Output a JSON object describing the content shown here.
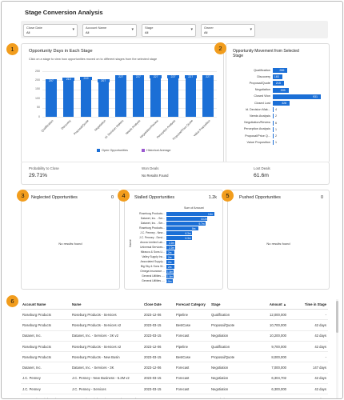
{
  "page": {
    "title": "Stage Conversion Analysis"
  },
  "filters": [
    {
      "label": "Close Date",
      "value": "All"
    },
    {
      "label": "Account Name",
      "value": "All"
    },
    {
      "label": "Stage",
      "value": "All"
    },
    {
      "label": "Owner",
      "value": "All"
    }
  ],
  "badges": [
    "1",
    "2",
    "3",
    "4",
    "5",
    "6"
  ],
  "opportunity_days": {
    "title": "Opportunity Days in Each Stage",
    "subtitle": "Click on a stage to view how opportunities moved on to different stages from the selected stage",
    "legend": [
      {
        "name": "Open Opportunities",
        "color": "#1b6fd6"
      },
      {
        "name": "Historical Average",
        "color": "#9b59d0"
      }
    ]
  },
  "movement": {
    "title": "Opportunity Movement from Selected Stage"
  },
  "stats": {
    "probability": {
      "label": "Probability to Close",
      "value": "29.71%"
    },
    "won": {
      "label": "Won Deals",
      "value": "No Results Found"
    },
    "lost": {
      "label": "Lost Deals",
      "value": "61.6m"
    }
  },
  "neglected": {
    "title": "Neglected Opportunities",
    "count": "0",
    "empty": "No results found"
  },
  "stalled": {
    "title": "Stalled Opportunities",
    "count": "1.2k",
    "axis_title": "Sum of Amount",
    "y_title": "Name"
  },
  "pushed": {
    "title": "Pushed Opportunities",
    "count": "0",
    "empty": "No results found"
  },
  "table": {
    "columns": [
      "Account Name",
      "Name",
      "Close Date",
      "Forecast Category",
      "Stage",
      "Amount ▲",
      "Time in Stage"
    ],
    "rows": [
      [
        "Roseburg Products",
        "Roseburg Products - Services",
        "2023-12-06",
        "Pipeline",
        "Qualification",
        "12,000,000",
        "-"
      ],
      [
        "Roseburg Products",
        "Roseburg Products - Services v2",
        "2023-03-15",
        "BestCase",
        "Proposal/Quote",
        "10,700,000",
        "42 days"
      ],
      [
        "Datanet, Inc.",
        "Datanet, Inc. - Services - 3K v2",
        "2023-03-15",
        "Forecast",
        "Negotiation",
        "10,200,000",
        "42 days"
      ],
      [
        "Roseburg Products",
        "Roseburg Products - Services v2",
        "2023-12-06",
        "Pipeline",
        "Qualification",
        "9,700,000",
        "42 days"
      ],
      [
        "Roseburg Products",
        "Roseburg Products - New Busin",
        "2023-03-15",
        "BestCase",
        "Proposal/Quote",
        "8,000,000",
        "-"
      ],
      [
        "Datanet, Inc.",
        "Datanet, Inc. - Services - 3K",
        "2023-12-06",
        "Forecast",
        "Negotiation",
        "7,000,000",
        "147 days"
      ],
      [
        "J.C. Penney",
        "J.C. Penney - New Business - 5.2M v2",
        "2023-03-15",
        "Forecast",
        "Negotiation",
        "6,304,702",
        "42 days"
      ],
      [
        "J.C. Penney",
        "J.C. Penney - Services",
        "2023-03-15",
        "Forecast",
        "Negotiation",
        "6,300,000",
        "42 days"
      ],
      [
        "Omega Financial Services",
        "Omega Financial Services - Services - 831k v2",
        "2023-03-15",
        "Forecast",
        "Negotiation",
        "569,004.48",
        "42 days"
      ]
    ]
  },
  "chart_data": [
    {
      "type": "bar",
      "title": "Opportunity Days in Each Stage",
      "categories": [
        "Qualification",
        "Discovery",
        "Proposal/Quote",
        "Negotiation",
        "Id. Decision Makers",
        "Needs Analysis",
        "Negotiation/Review",
        "Perception Analysis",
        "Proposal/Price Quote",
        "Value Proposition"
      ],
      "series": [
        {
          "name": "Open Opportunities",
          "values": [
            207,
            213,
            219,
            207,
            227,
            227,
            227,
            227,
            227,
            227
          ]
        }
      ],
      "value_labels": [
        "207",
        "213",
        "219",
        "207",
        "227",
        "227",
        "227",
        "227",
        "227",
        "227"
      ],
      "y_ticks": [
        "250",
        "200",
        "150",
        "100",
        "50",
        "0"
      ],
      "ylim": [
        0,
        250
      ],
      "grid": true,
      "legend": "bottom"
    },
    {
      "type": "bar",
      "orientation": "horizontal",
      "title": "Opportunity Movement from Selected Stage",
      "categories": [
        "Qualification",
        "Discovery",
        "Proposal/Quote",
        "Negotiation",
        "Closed Won",
        "Closed Lost",
        "Id. Decision Mak...",
        "Needs Analysis",
        "Negotiation/Review",
        "Perception Analysis",
        "Proposal/Price Q...",
        "Value Proposition"
      ],
      "values": [
        286,
        183,
        215,
        305,
        931,
        328,
        4,
        2,
        6,
        1,
        2,
        1
      ],
      "value_labels": [
        "286",
        "183",
        "215",
        "305",
        "931",
        "328",
        "4",
        "2",
        "6",
        "1",
        "2",
        "1"
      ]
    },
    {
      "type": "bar",
      "orientation": "horizontal",
      "title": "Stalled Opportunities",
      "xlabel": "Sum of Amount",
      "ylabel": "Name",
      "categories": [
        "Roseburg Products...",
        "Datanet, Inc. - Ser...",
        "Datanet, Inc. - Ser...",
        "Roseburg Products...",
        "J.C. Penney - New...",
        "J.C. Penney - Servi...",
        "Anova Limited Lab...",
        "Universal Services...",
        "Miracco & Sons Ll...",
        "Valley Supply Inc...",
        "Associated Supply...",
        "Big Sky & Sons W...",
        "Omega Insurance ...",
        "General Utilities -...",
        "General Utilities -..."
      ],
      "values": [
        12,
        10.2,
        9.7,
        8.0,
        6.3,
        6.3,
        2.2,
        2.2,
        2.0,
        2.0,
        2.0,
        2.0,
        1.8,
        1.8,
        1.5
      ],
      "value_labels": [
        "12m",
        "10.2m",
        "9.7m",
        "8m",
        "6.3m",
        "6.3m",
        "2.2m",
        "2.2m",
        "2m",
        "2m",
        "2m",
        "2m",
        "1.8m",
        "1.8m",
        "1.5m"
      ]
    }
  ]
}
